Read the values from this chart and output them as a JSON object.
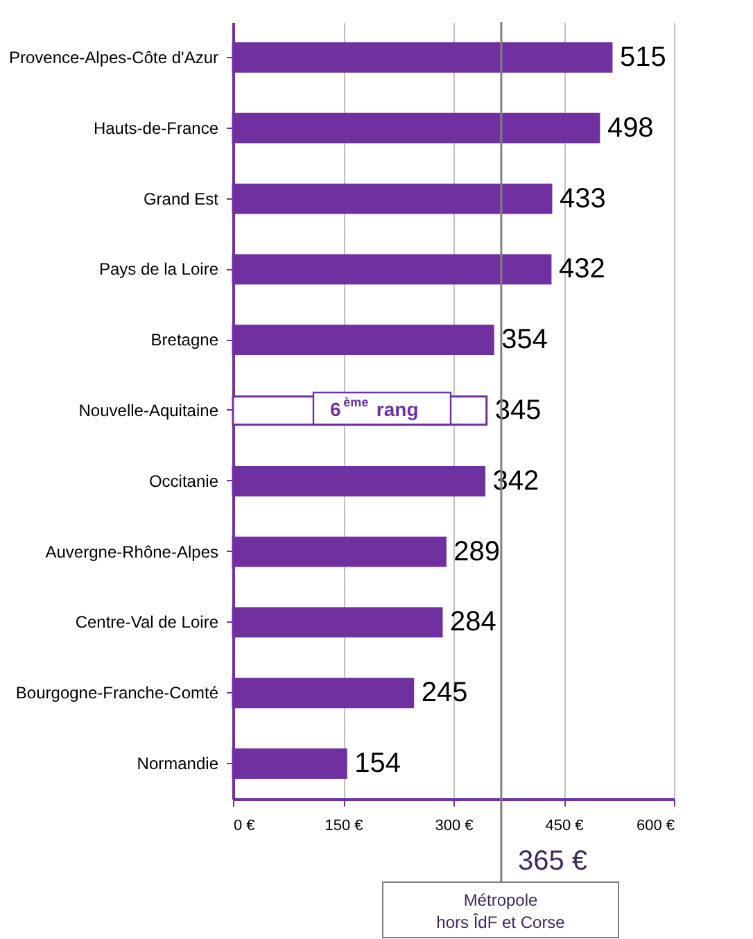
{
  "chart_data": {
    "type": "bar",
    "orientation": "horizontal",
    "categories": [
      "Provence-Alpes-Côte d'Azur",
      "Hauts-de-France",
      "Grand Est",
      "Pays de la Loire",
      "Bretagne",
      "Nouvelle-Aquitaine",
      "Occitanie",
      "Auvergne-Rhône-Alpes",
      "Centre-Val de Loire",
      "Bourgogne-Franche-Comté",
      "Normandie"
    ],
    "values": [
      515,
      498,
      433,
      432,
      354,
      345,
      342,
      289,
      284,
      245,
      154
    ],
    "colors": [
      "#7030a0",
      "#7030a0",
      "#7030a0",
      "#7030a0",
      "#7030a0",
      "#ffffff",
      "#7030a0",
      "#7030a0",
      "#7030a0",
      "#7030a0",
      "#7030a0"
    ],
    "data_labels": true,
    "xlim": [
      0,
      600
    ],
    "xticks": [
      {
        "value": 0,
        "label": "0 €"
      },
      {
        "value": 150,
        "label": "150 €"
      },
      {
        "value": 300,
        "label": "300 €"
      },
      {
        "value": 450,
        "label": "450 €"
      },
      {
        "value": 600,
        "label": "600 €"
      }
    ],
    "grid": "x",
    "ref_lines": [
      {
        "axis": "x",
        "value": 365,
        "label": "365 €",
        "color": "#808080"
      }
    ],
    "annotations": [
      "6$^{ème}$ rang",
      "Métropole\nhors ÎdF et Corse"
    ]
  }
}
